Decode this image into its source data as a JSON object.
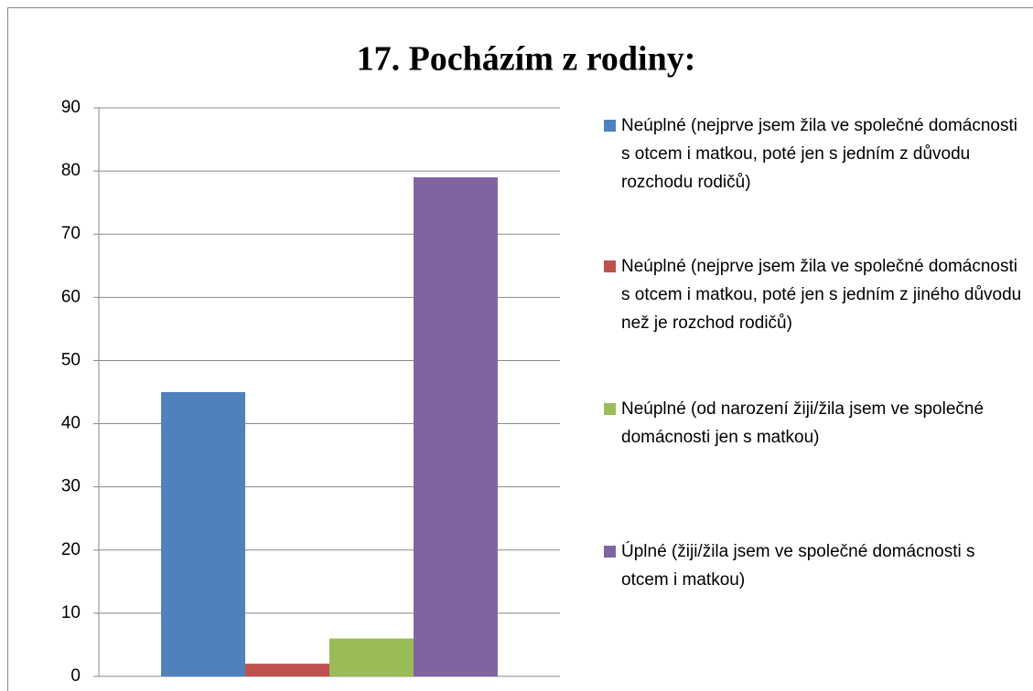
{
  "chart_data": {
    "type": "bar",
    "title": "17. Pocházím z rodiny:",
    "categories": [
      null
    ],
    "series": [
      {
        "name": "Neúplné (nejprve jsem žila ve společné domácnosti s otcem i matkou, poté jen s jedním z důvodu rozchodu rodičů)",
        "color": "#4f81bd",
        "values": [
          45
        ]
      },
      {
        "name": "Neúplné (nejprve jsem žila ve společné domácnosti s otcem i matkou, poté jen s jedním z jiného důvodu než je rozchod rodičů)",
        "color": "#c0504d",
        "values": [
          2
        ]
      },
      {
        "name": "Neúplné (od narození žiji/žila jsem ve společné domácnosti jen s matkou)",
        "color": "#9bbb59",
        "values": [
          6
        ]
      },
      {
        "name": "Úplné (žiji/žila jsem ve společné domácnosti s otcem i matkou)",
        "color": "#8064a2",
        "values": [
          79
        ]
      }
    ],
    "ylim": [
      0,
      90
    ],
    "yticks": [
      0,
      10,
      20,
      30,
      40,
      50,
      60,
      70,
      80,
      90
    ],
    "grid": true,
    "legend": "right"
  }
}
